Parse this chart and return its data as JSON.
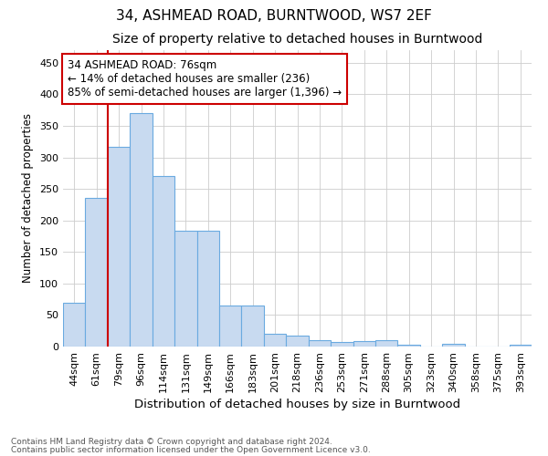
{
  "title_line1": "34, ASHMEAD ROAD, BURNTWOOD, WS7 2EF",
  "title_line2": "Size of property relative to detached houses in Burntwood",
  "xlabel": "Distribution of detached houses by size in Burntwood",
  "ylabel": "Number of detached properties",
  "bar_color": "#c8daf0",
  "bar_edge_color": "#6aaae0",
  "annotation_box_text": "34 ASHMEAD ROAD: 76sqm\n← 14% of detached houses are smaller (236)\n85% of semi-detached houses are larger (1,396) →",
  "red_line_x": 2,
  "categories": [
    "44sqm",
    "61sqm",
    "79sqm",
    "96sqm",
    "114sqm",
    "131sqm",
    "149sqm",
    "166sqm",
    "183sqm",
    "201sqm",
    "218sqm",
    "236sqm",
    "253sqm",
    "271sqm",
    "288sqm",
    "305sqm",
    "323sqm",
    "340sqm",
    "358sqm",
    "375sqm",
    "393sqm"
  ],
  "values": [
    69,
    236,
    316,
    370,
    270,
    184,
    184,
    65,
    65,
    20,
    18,
    10,
    7,
    9,
    10,
    3,
    0,
    4,
    0,
    0,
    3
  ],
  "ylim": [
    0,
    470
  ],
  "yticks": [
    0,
    50,
    100,
    150,
    200,
    250,
    300,
    350,
    400,
    450
  ],
  "footer_line1": "Contains HM Land Registry data © Crown copyright and database right 2024.",
  "footer_line2": "Contains public sector information licensed under the Open Government Licence v3.0.",
  "bg_color": "#ffffff",
  "grid_color": "#cccccc",
  "title_fontsize": 11,
  "subtitle_fontsize": 10,
  "ylabel_fontsize": 8.5,
  "xlabel_fontsize": 9.5,
  "tick_fontsize": 8,
  "annotation_fontsize": 8.5,
  "footer_fontsize": 6.5
}
